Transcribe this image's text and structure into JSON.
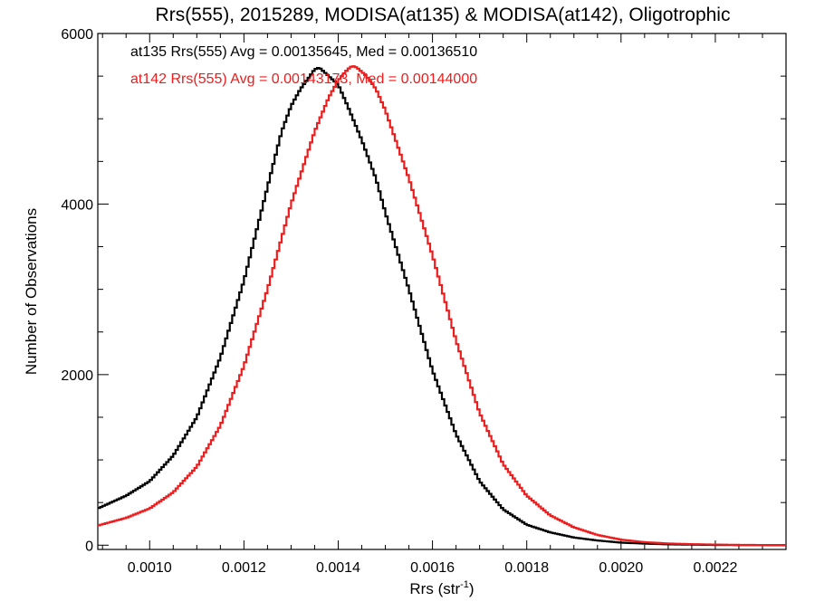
{
  "chart_data": {
    "type": "line",
    "title": "Rrs(555), 2015289, MODISA(at135) & MODISA(at142), Oligotrophic",
    "xlabel_main": "Rrs (str",
    "xlabel_sup": "-1",
    "xlabel_close": ")",
    "ylabel": "Number of Observations",
    "xlim": [
      0.00089,
      0.00235
    ],
    "ylim": [
      -50,
      6000
    ],
    "x_ticks": [
      0.001,
      0.0012,
      0.0014,
      0.0016,
      0.0018,
      0.002,
      0.0022
    ],
    "x_tick_labels": [
      "0.0010",
      "0.0012",
      "0.0014",
      "0.0016",
      "0.0018",
      "0.0020",
      "0.0022"
    ],
    "y_ticks": [
      0,
      2000,
      4000,
      6000
    ],
    "y_tick_labels": [
      "0",
      "2000",
      "4000",
      "6000"
    ],
    "grid": false,
    "step": true,
    "annotations": [
      {
        "text": "at135 Rrs(555) Avg = 0.00135645, Med = 0.00136510",
        "color": "#000000"
      },
      {
        "text": "at142 Rrs(555) Avg = 0.00143173, Med = 0.00144000",
        "color": "#ee1c1c"
      }
    ],
    "series": [
      {
        "color": "#000000",
        "x": [
          0.00089,
          0.00095,
          0.001,
          0.00105,
          0.0011,
          0.00115,
          0.0012,
          0.00125,
          0.00128,
          0.0013,
          0.00132,
          0.00134,
          0.00135,
          0.00136,
          0.00137,
          0.00138,
          0.0014,
          0.00142,
          0.00145,
          0.00148,
          0.0015,
          0.00155,
          0.0016,
          0.00165,
          0.0017,
          0.00175,
          0.0018,
          0.00185,
          0.0019,
          0.00195,
          0.002,
          0.00205,
          0.0021,
          0.00215,
          0.0022,
          0.00225,
          0.0023,
          0.00235
        ],
        "y": [
          430,
          580,
          750,
          1050,
          1500,
          2200,
          3100,
          4200,
          4850,
          5150,
          5350,
          5500,
          5580,
          5600,
          5550,
          5500,
          5400,
          5150,
          4750,
          4300,
          3900,
          3000,
          2050,
          1300,
          750,
          420,
          240,
          150,
          90,
          55,
          30,
          18,
          10,
          6,
          3,
          2,
          1,
          0
        ]
      },
      {
        "color": "#ee1c1c",
        "x": [
          0.00089,
          0.00095,
          0.001,
          0.00105,
          0.0011,
          0.00115,
          0.0012,
          0.00125,
          0.0013,
          0.00135,
          0.00138,
          0.0014,
          0.00142,
          0.00143,
          0.00144,
          0.00145,
          0.00146,
          0.00148,
          0.0015,
          0.00155,
          0.0016,
          0.00165,
          0.0017,
          0.00175,
          0.0018,
          0.00185,
          0.0019,
          0.00195,
          0.002,
          0.00205,
          0.0021,
          0.00215,
          0.0022,
          0.00225,
          0.0023,
          0.00235
        ],
        "y": [
          230,
          320,
          430,
          620,
          920,
          1400,
          2100,
          3000,
          4000,
          4850,
          5250,
          5450,
          5580,
          5620,
          5600,
          5550,
          5500,
          5350,
          5100,
          4300,
          3400,
          2400,
          1550,
          950,
          580,
          350,
          210,
          120,
          65,
          35,
          20,
          12,
          7,
          4,
          2,
          1
        ]
      }
    ]
  }
}
